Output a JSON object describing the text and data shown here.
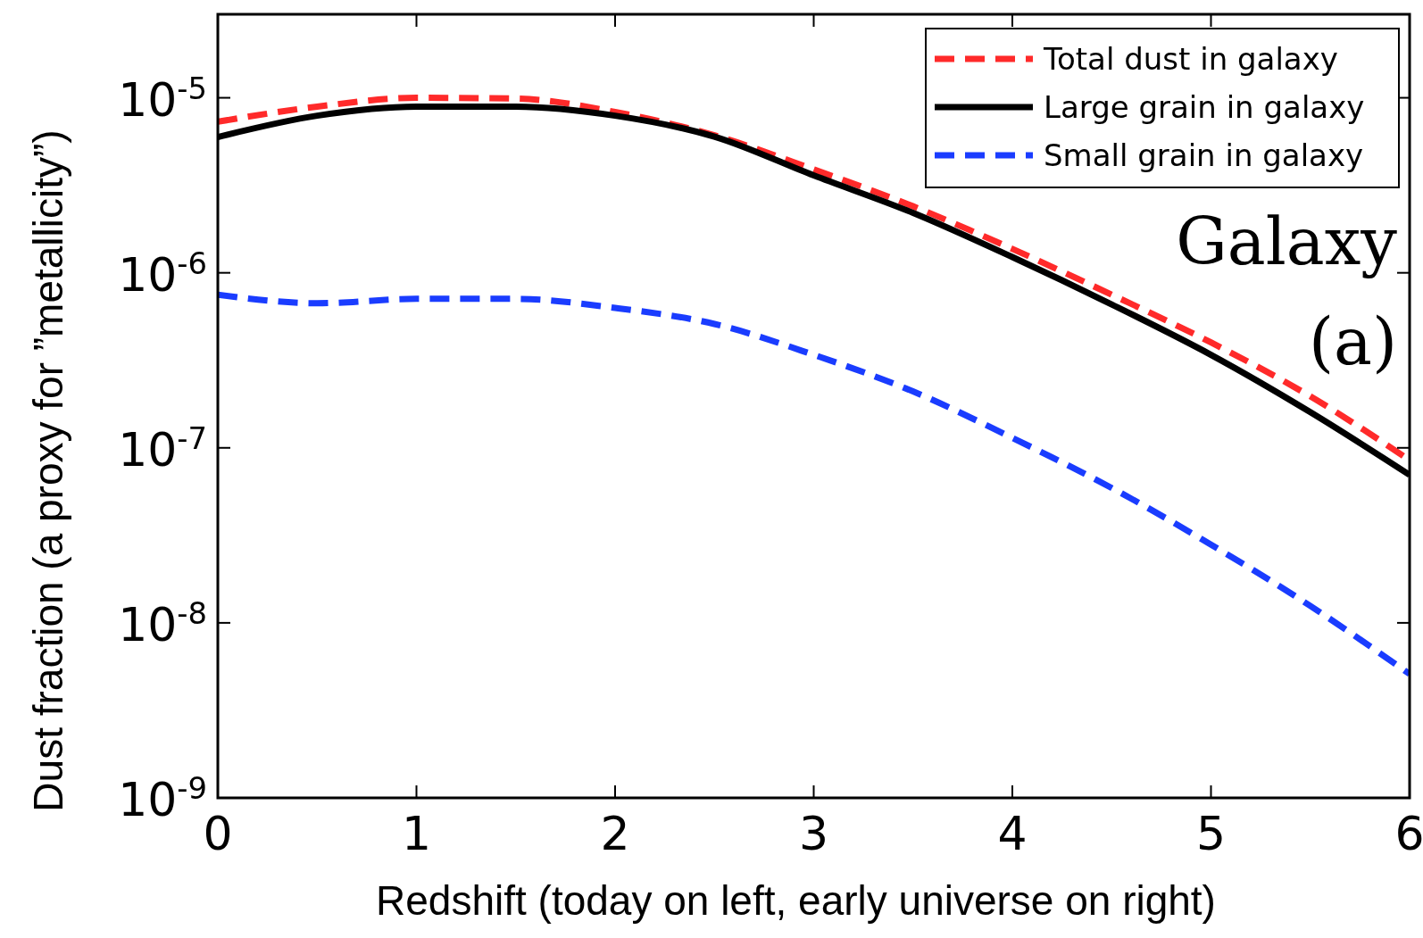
{
  "chart_data": {
    "type": "line",
    "xlabel": "Redshift (today on left, early universe on right)",
    "ylabel": "Dust fraction (a proxy for ”metallicity”)",
    "log": "y",
    "xlim": [
      0,
      6
    ],
    "xticks": [
      0,
      1,
      2,
      3,
      4,
      5,
      6
    ],
    "ylim": [
      1e-09,
      3e-05
    ],
    "yticks": [
      {
        "value": 1e-09,
        "label": "10$^{-9}$"
      },
      {
        "value": 1e-08,
        "label": "10$^{-8}$"
      },
      {
        "value": 1e-07,
        "label": "10$^{-7}$"
      },
      {
        "value": 1e-06,
        "label": "10$^{-6}$"
      },
      {
        "value": 1e-05,
        "label": "10$^{-5}$"
      }
    ],
    "grid": false,
    "legend": "top right",
    "annotations": [
      "Galaxy",
      "(a)"
    ],
    "x": [
      0,
      0.5,
      1,
      1.5,
      2,
      2.5,
      3,
      3.5,
      4,
      4.5,
      5,
      5.5,
      6
    ],
    "series": [
      {
        "name": "Total dust in galaxy",
        "color": "#ff2a2a",
        "line_style": "dashed",
        "values": [
          7.3e-06,
          8.9e-06,
          1e-05,
          9.9e-06,
          8.3e-06,
          6.1e-06,
          3.9e-06,
          2.4e-06,
          1.37e-06,
          7.5e-07,
          4e-07,
          1.97e-07,
          8.5e-08
        ]
      },
      {
        "name": "Large grain in galaxy",
        "color": "#000000",
        "line_style": "solid",
        "values": [
          5.97e-06,
          7.9e-06,
          8.9e-06,
          8.9e-06,
          7.9e-06,
          6e-06,
          3.6e-06,
          2.2e-06,
          1.23e-06,
          6.6e-07,
          3.4e-07,
          1.6e-07,
          7e-08
        ]
      },
      {
        "name": "Small grain in galaxy",
        "color": "#1a3cff",
        "line_style": "dashed",
        "values": [
          7.5e-07,
          6.7e-07,
          7.1e-07,
          7.1e-07,
          6.3e-07,
          5.1e-07,
          3.4e-07,
          2.1e-07,
          1.14e-07,
          5.9e-08,
          2.8e-08,
          1.25e-08,
          5.1e-09
        ]
      }
    ]
  }
}
